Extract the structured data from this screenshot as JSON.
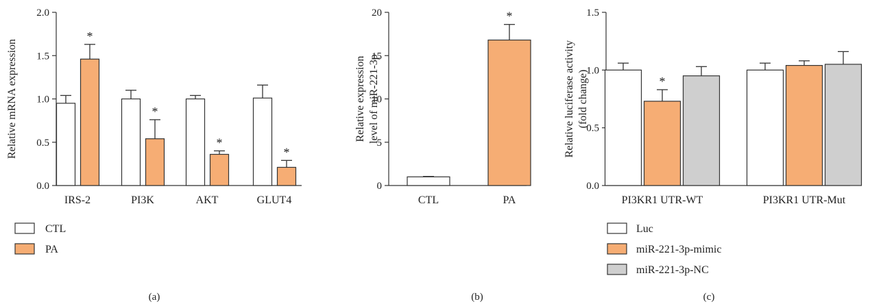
{
  "colors": {
    "ctl": "#ffffff",
    "pa": "#f6ad74",
    "nc": "#cfcfcf",
    "axis": "#333333"
  },
  "chart_data": [
    {
      "type": "bar",
      "panel_label": "(a)",
      "ylabel": "Relative mRNA expression",
      "ylim": [
        0,
        2.0
      ],
      "yticks": [
        "0.0",
        "0.5",
        "1.0",
        "1.5",
        "2.0"
      ],
      "ytick_values": [
        0,
        0.5,
        1.0,
        1.5,
        2.0
      ],
      "categories": [
        "IRS-2",
        "PI3K",
        "AKT",
        "GLUT4"
      ],
      "series": [
        {
          "name": "CTL",
          "color_key": "ctl",
          "values": [
            0.95,
            1.0,
            1.0,
            1.01
          ],
          "errors": [
            0.09,
            0.1,
            0.04,
            0.15
          ],
          "sig": [
            false,
            false,
            false,
            false
          ]
        },
        {
          "name": "PA",
          "color_key": "pa",
          "values": [
            1.46,
            0.54,
            0.36,
            0.21
          ],
          "errors": [
            0.17,
            0.22,
            0.04,
            0.08
          ],
          "sig": [
            true,
            true,
            true,
            true
          ]
        }
      ],
      "sig_symbol": "*",
      "legend_position": "bottom-left"
    },
    {
      "type": "bar",
      "panel_label": "(b)",
      "ylabel": [
        "Relative expression",
        "level of miR-221-3p"
      ],
      "ylim": [
        0,
        20
      ],
      "yticks": [
        "0",
        "5",
        "10",
        "15",
        "20"
      ],
      "ytick_values": [
        0,
        5,
        10,
        15,
        20
      ],
      "categories": [
        "CTL",
        "PA"
      ],
      "values": [
        1.0,
        16.8
      ],
      "errors": [
        0.05,
        1.8
      ],
      "color_keys": [
        "ctl",
        "pa"
      ],
      "sig": [
        false,
        true
      ],
      "sig_symbol": "*"
    },
    {
      "type": "bar",
      "panel_label": "(c)",
      "ylabel": [
        "Relative luciferase activity",
        "(fold change)"
      ],
      "ylim": [
        0,
        1.5
      ],
      "yticks": [
        "0.0",
        "0.5",
        "1.0",
        "1.5"
      ],
      "ytick_values": [
        0,
        0.5,
        1.0,
        1.5
      ],
      "categories": [
        "PI3KR1 UTR-WT",
        "PI3KR1 UTR-Mut"
      ],
      "series": [
        {
          "name": "Luc",
          "color_key": "ctl",
          "values": [
            1.0,
            1.0
          ],
          "errors": [
            0.06,
            0.06
          ],
          "sig": [
            false,
            false
          ]
        },
        {
          "name": "miR-221-3p-mimic",
          "color_key": "pa",
          "values": [
            0.73,
            1.04
          ],
          "errors": [
            0.1,
            0.04
          ],
          "sig": [
            true,
            false
          ]
        },
        {
          "name": "miR-221-3p-NC",
          "color_key": "nc",
          "values": [
            0.95,
            1.05
          ],
          "errors": [
            0.08,
            0.11
          ],
          "sig": [
            false,
            false
          ]
        }
      ],
      "sig_symbol": "*",
      "legend_position": "bottom-left"
    }
  ]
}
